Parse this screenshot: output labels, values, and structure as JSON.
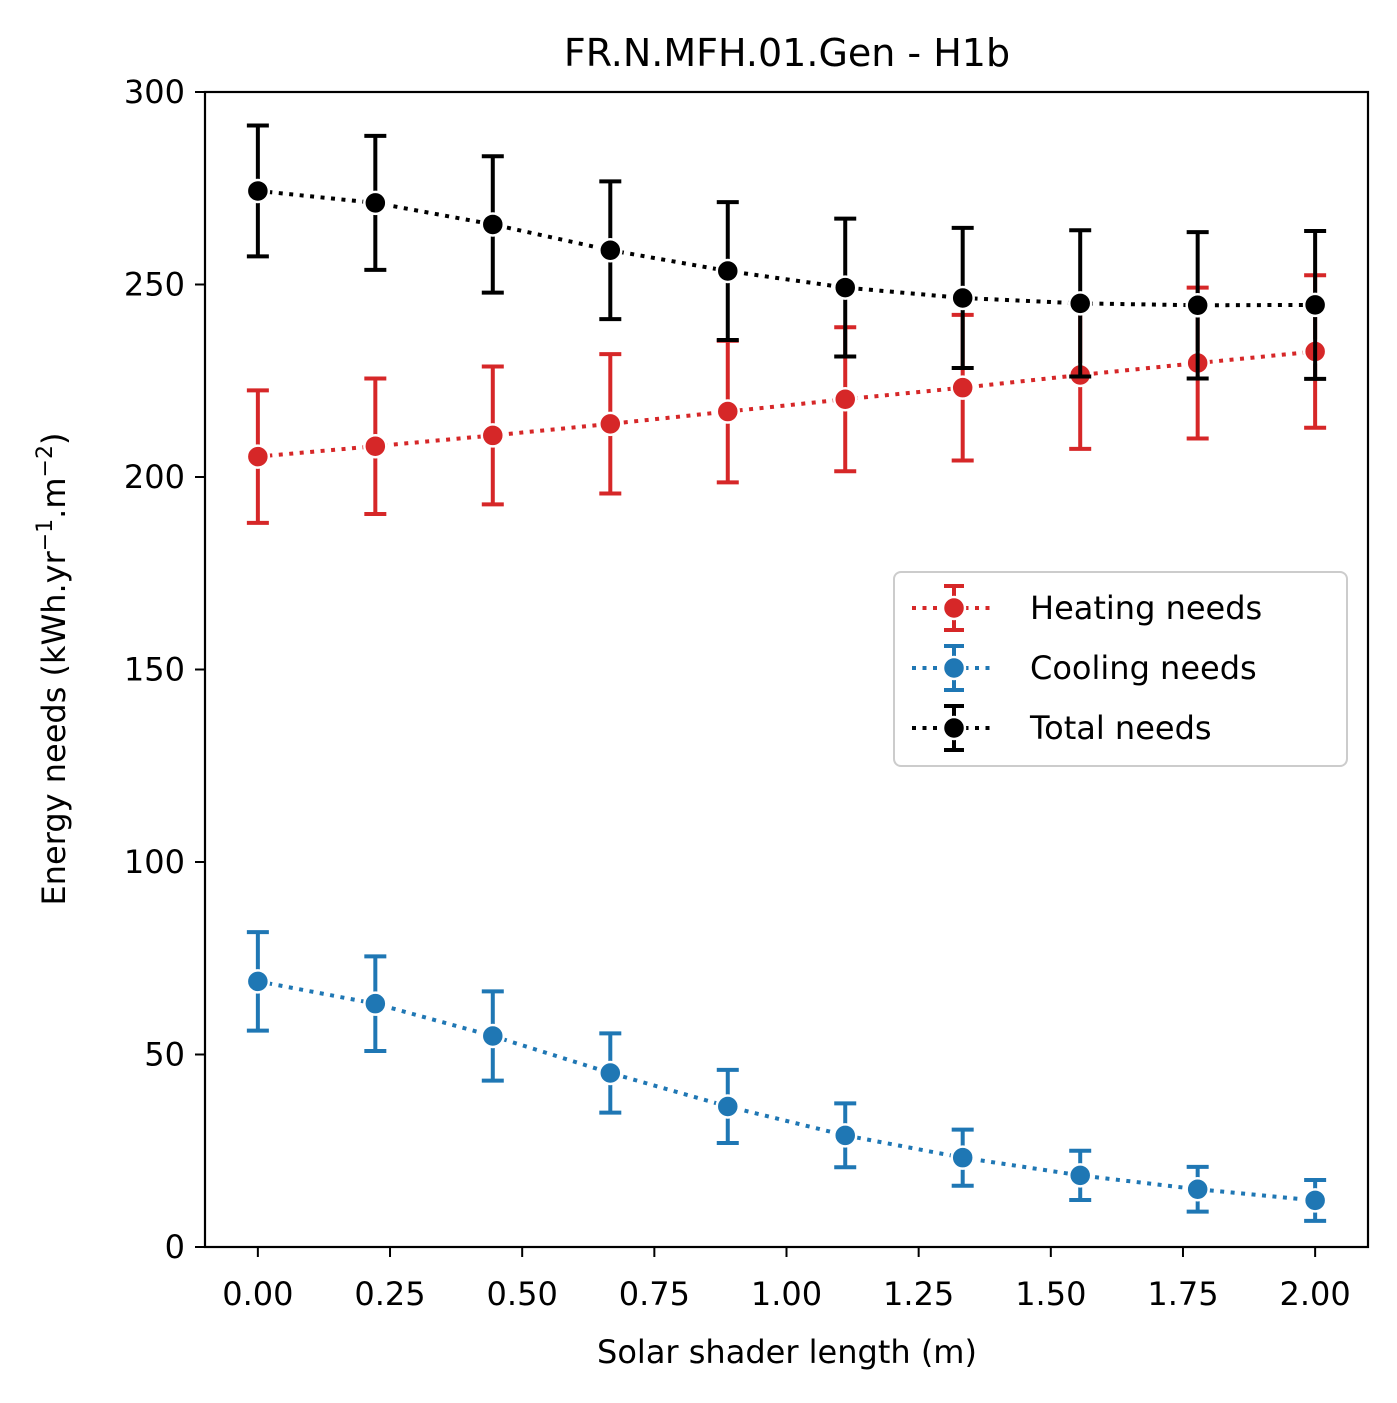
{
  "chart_data": {
    "type": "line",
    "title": "FR.N.MFH.01.Gen - H1b",
    "xlabel": "Solar shader length (m)",
    "ylabel": "Energy needs (kWh.yr",
    "ylabel_sup1": "−1",
    "ylabel_mid": ".m",
    "ylabel_sup2": "−2",
    "ylabel_end": ")",
    "xlim": [
      -0.1,
      2.1
    ],
    "ylim": [
      0,
      300
    ],
    "xticks": [
      0.0,
      0.25,
      0.5,
      0.75,
      1.0,
      1.25,
      1.5,
      1.75,
      2.0
    ],
    "xtick_labels": [
      "0.00",
      "0.25",
      "0.50",
      "0.75",
      "1.00",
      "1.25",
      "1.50",
      "1.75",
      "2.00"
    ],
    "yticks": [
      0,
      50,
      100,
      150,
      200,
      250,
      300
    ],
    "ytick_labels": [
      "0",
      "50",
      "100",
      "150",
      "200",
      "250",
      "300"
    ],
    "legend_position": "center-right",
    "grid": false,
    "x": [
      0.0,
      0.2222,
      0.4444,
      0.6667,
      0.8889,
      1.1111,
      1.3333,
      1.5556,
      1.7778,
      2.0
    ],
    "series": [
      {
        "name": "Heating needs",
        "color": "#d62728",
        "values": [
          205.3,
          208.0,
          210.8,
          213.8,
          217.0,
          220.2,
          223.2,
          226.5,
          229.6,
          232.6
        ],
        "err": [
          17.2,
          17.6,
          17.9,
          18.1,
          18.4,
          18.7,
          18.9,
          19.2,
          19.6,
          19.8
        ]
      },
      {
        "name": "Cooling needs",
        "color": "#1f77b4",
        "values": [
          69.0,
          63.2,
          54.8,
          45.2,
          36.5,
          29.0,
          23.2,
          18.6,
          15.0,
          12.1
        ],
        "err": [
          12.8,
          12.3,
          11.6,
          10.3,
          9.5,
          8.3,
          7.3,
          6.4,
          5.8,
          5.3
        ]
      },
      {
        "name": "Total needs",
        "color": "#000000",
        "values": [
          274.3,
          271.2,
          265.6,
          258.9,
          253.5,
          249.2,
          246.5,
          245.1,
          244.6,
          244.7
        ],
        "err": [
          17.0,
          17.4,
          17.7,
          17.9,
          17.9,
          17.9,
          18.2,
          19.0,
          19.0,
          19.2
        ]
      }
    ]
  }
}
